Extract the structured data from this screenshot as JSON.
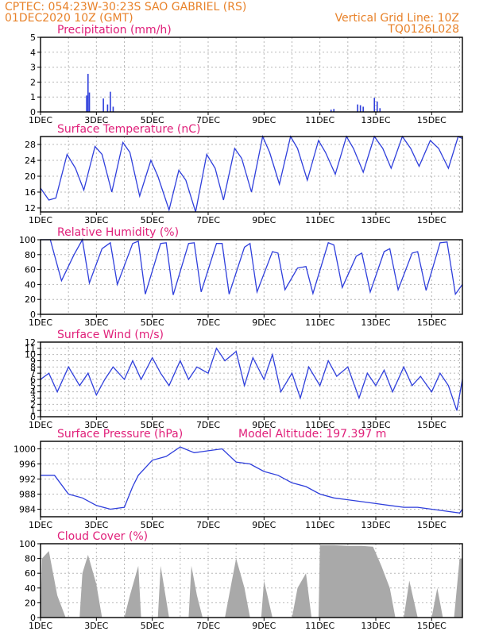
{
  "header": {
    "line1_left": "CPTEC:   054:23W-30:23S   SAO GABRIEL (RS)",
    "line2_left": "01DEC2020 10Z (GMT)",
    "line1_right": "Vertical Grid Line: 10Z",
    "line2_right": "TQ0126L028"
  },
  "x_axis": {
    "tick_labels": [
      "1DEC",
      "3DEC",
      "5DEC",
      "7DEC",
      "9DEC",
      "11DEC",
      "13DEC",
      "15DEC"
    ],
    "year_fragment": "2020"
  },
  "colors": {
    "series": "#2f3fdc",
    "cloud": "#a9a9a9",
    "title": "#e0207a",
    "header": "#e8822a"
  },
  "chart_data": [
    {
      "type": "bar",
      "title": "Precipitation (mm/h)",
      "unit": "mm/h",
      "ylim": [
        0,
        5
      ],
      "yticks": [
        0,
        1,
        2,
        3,
        4,
        5
      ],
      "x_unit": "days since 01DEC2020 10Z",
      "points": [
        [
          1.65,
          1.1
        ],
        [
          1.7,
          2.55
        ],
        [
          1.75,
          1.3
        ],
        [
          2.25,
          0.9
        ],
        [
          2.4,
          0.5
        ],
        [
          2.5,
          1.35
        ],
        [
          2.6,
          0.35
        ],
        [
          10.4,
          0.15
        ],
        [
          10.5,
          0.2
        ],
        [
          11.35,
          0.5
        ],
        [
          11.45,
          0.45
        ],
        [
          11.55,
          0.35
        ],
        [
          11.95,
          0.95
        ],
        [
          12.05,
          0.7
        ],
        [
          12.15,
          0.25
        ]
      ]
    },
    {
      "type": "line",
      "title": "Surface Temperature (nC)",
      "unit": "nC",
      "ylim": [
        11,
        30
      ],
      "yticks": [
        12,
        16,
        20,
        24,
        28
      ],
      "points": [
        [
          0,
          17
        ],
        [
          0.3,
          14
        ],
        [
          0.55,
          14.5
        ],
        [
          0.95,
          25.5
        ],
        [
          1.25,
          22
        ],
        [
          1.55,
          16.5
        ],
        [
          1.95,
          27.5
        ],
        [
          2.2,
          25.5
        ],
        [
          2.55,
          16
        ],
        [
          2.95,
          28.5
        ],
        [
          3.2,
          26
        ],
        [
          3.55,
          15
        ],
        [
          3.95,
          24
        ],
        [
          4.2,
          20
        ],
        [
          4.6,
          11.5
        ],
        [
          4.95,
          21.5
        ],
        [
          5.2,
          19
        ],
        [
          5.55,
          11
        ],
        [
          5.95,
          25.5
        ],
        [
          6.25,
          22
        ],
        [
          6.55,
          14
        ],
        [
          6.95,
          27
        ],
        [
          7.2,
          24.5
        ],
        [
          7.55,
          16
        ],
        [
          7.95,
          30
        ],
        [
          8.2,
          26
        ],
        [
          8.55,
          18
        ],
        [
          8.95,
          30
        ],
        [
          9.2,
          27
        ],
        [
          9.55,
          19
        ],
        [
          9.95,
          29
        ],
        [
          10.2,
          26
        ],
        [
          10.55,
          20.5
        ],
        [
          10.95,
          30
        ],
        [
          11.2,
          27
        ],
        [
          11.55,
          21
        ],
        [
          11.95,
          30
        ],
        [
          12.25,
          27
        ],
        [
          12.55,
          22
        ],
        [
          12.95,
          30
        ],
        [
          13.25,
          27
        ],
        [
          13.55,
          22.5
        ],
        [
          13.95,
          29
        ],
        [
          14.25,
          27
        ],
        [
          14.6,
          22
        ],
        [
          14.95,
          30
        ],
        [
          15.1,
          29.5
        ]
      ]
    },
    {
      "type": "line",
      "title": "Relative Humidity (%)",
      "unit": "%",
      "ylim": [
        0,
        100
      ],
      "yticks": [
        0,
        20,
        40,
        60,
        80,
        100
      ],
      "points": [
        [
          0,
          100
        ],
        [
          0.35,
          100
        ],
        [
          0.75,
          45
        ],
        [
          1.2,
          80
        ],
        [
          1.5,
          100
        ],
        [
          1.75,
          42
        ],
        [
          2.2,
          88
        ],
        [
          2.5,
          96
        ],
        [
          2.75,
          40
        ],
        [
          3.3,
          95
        ],
        [
          3.5,
          98
        ],
        [
          3.75,
          27
        ],
        [
          4.3,
          95
        ],
        [
          4.5,
          96
        ],
        [
          4.75,
          26
        ],
        [
          5.3,
          95
        ],
        [
          5.5,
          96
        ],
        [
          5.75,
          30
        ],
        [
          6.3,
          95
        ],
        [
          6.5,
          95
        ],
        [
          6.75,
          27
        ],
        [
          7.3,
          90
        ],
        [
          7.5,
          95
        ],
        [
          7.75,
          30
        ],
        [
          8.3,
          84
        ],
        [
          8.5,
          82
        ],
        [
          8.75,
          33
        ],
        [
          9.2,
          62
        ],
        [
          9.5,
          64
        ],
        [
          9.75,
          28
        ],
        [
          10.3,
          96
        ],
        [
          10.5,
          93
        ],
        [
          10.8,
          36
        ],
        [
          11.3,
          78
        ],
        [
          11.5,
          82
        ],
        [
          11.8,
          30
        ],
        [
          12.3,
          84
        ],
        [
          12.5,
          88
        ],
        [
          12.8,
          33
        ],
        [
          13.3,
          82
        ],
        [
          13.5,
          84
        ],
        [
          13.8,
          32
        ],
        [
          14.3,
          96
        ],
        [
          14.55,
          97
        ],
        [
          14.85,
          27
        ],
        [
          15.1,
          40
        ]
      ]
    },
    {
      "type": "line",
      "title": "Surface Wind (m/s)",
      "unit": "m/s",
      "ylim": [
        0,
        12
      ],
      "yticks": [
        0,
        1,
        2,
        3,
        4,
        5,
        6,
        7,
        8,
        9,
        10,
        11,
        12
      ],
      "points": [
        [
          0,
          6
        ],
        [
          0.3,
          7
        ],
        [
          0.6,
          4
        ],
        [
          1,
          8
        ],
        [
          1.4,
          5
        ],
        [
          1.7,
          7
        ],
        [
          2.0,
          3.5
        ],
        [
          2.3,
          6
        ],
        [
          2.6,
          8
        ],
        [
          3.0,
          6
        ],
        [
          3.3,
          9
        ],
        [
          3.6,
          6
        ],
        [
          4.0,
          9.5
        ],
        [
          4.3,
          7
        ],
        [
          4.6,
          5
        ],
        [
          5.0,
          9
        ],
        [
          5.3,
          6
        ],
        [
          5.6,
          8
        ],
        [
          6.0,
          7
        ],
        [
          6.3,
          11
        ],
        [
          6.6,
          9
        ],
        [
          7.0,
          10.5
        ],
        [
          7.3,
          5
        ],
        [
          7.6,
          9.5
        ],
        [
          8.0,
          6
        ],
        [
          8.3,
          10
        ],
        [
          8.6,
          4
        ],
        [
          9.0,
          7
        ],
        [
          9.3,
          3
        ],
        [
          9.6,
          8
        ],
        [
          10.0,
          5
        ],
        [
          10.3,
          9
        ],
        [
          10.6,
          6.5
        ],
        [
          11.0,
          8
        ],
        [
          11.4,
          3
        ],
        [
          11.7,
          7
        ],
        [
          12.0,
          5
        ],
        [
          12.3,
          7.5
        ],
        [
          12.6,
          4
        ],
        [
          13.0,
          8
        ],
        [
          13.3,
          5
        ],
        [
          13.6,
          6.5
        ],
        [
          14.0,
          4
        ],
        [
          14.3,
          7
        ],
        [
          14.6,
          5
        ],
        [
          14.9,
          1
        ],
        [
          15.1,
          6
        ]
      ]
    },
    {
      "type": "line",
      "title": "Surface Pressure (hPa)",
      "annotation": "Model Altitude: 197.397  m",
      "unit": "hPa",
      "ylim": [
        982,
        1002
      ],
      "yticks": [
        984,
        988,
        992,
        996,
        1000
      ],
      "points": [
        [
          0,
          993
        ],
        [
          0.5,
          993
        ],
        [
          1,
          988
        ],
        [
          1.5,
          987
        ],
        [
          2,
          985
        ],
        [
          2.5,
          984
        ],
        [
          3,
          984.5
        ],
        [
          3.3,
          990
        ],
        [
          3.5,
          993
        ],
        [
          4.0,
          997
        ],
        [
          4.5,
          998
        ],
        [
          5.0,
          1000.5
        ],
        [
          5.5,
          999
        ],
        [
          6.0,
          999.5
        ],
        [
          6.5,
          1000
        ],
        [
          7.0,
          996.5
        ],
        [
          7.5,
          996
        ],
        [
          8.0,
          994
        ],
        [
          8.5,
          993
        ],
        [
          9.0,
          991
        ],
        [
          9.5,
          990
        ],
        [
          10.0,
          988
        ],
        [
          10.5,
          987
        ],
        [
          11.0,
          986.5
        ],
        [
          11.5,
          986
        ],
        [
          12.0,
          985.5
        ],
        [
          12.5,
          985
        ],
        [
          13.0,
          984.5
        ],
        [
          13.5,
          984.5
        ],
        [
          14.0,
          984
        ],
        [
          14.5,
          983.5
        ],
        [
          15.0,
          983
        ],
        [
          15.1,
          984
        ]
      ]
    },
    {
      "type": "area",
      "title": "Cloud Cover (%)",
      "unit": "%",
      "ylim": [
        0,
        100
      ],
      "yticks": [
        0,
        20,
        40,
        60,
        80,
        100
      ],
      "points": [
        [
          0,
          0
        ],
        [
          0.05,
          80
        ],
        [
          0.3,
          90
        ],
        [
          0.6,
          30
        ],
        [
          0.9,
          0
        ],
        [
          1.4,
          0
        ],
        [
          1.5,
          60
        ],
        [
          1.7,
          85
        ],
        [
          2.0,
          45
        ],
        [
          2.2,
          0
        ],
        [
          3.0,
          0
        ],
        [
          3.2,
          30
        ],
        [
          3.5,
          70
        ],
        [
          3.6,
          0
        ],
        [
          4.2,
          0
        ],
        [
          4.3,
          70
        ],
        [
          4.6,
          0
        ],
        [
          5.3,
          0
        ],
        [
          5.4,
          70
        ],
        [
          5.6,
          30
        ],
        [
          5.8,
          0
        ],
        [
          6.6,
          0
        ],
        [
          6.8,
          40
        ],
        [
          7.0,
          80
        ],
        [
          7.3,
          40
        ],
        [
          7.5,
          0
        ],
        [
          7.9,
          0
        ],
        [
          8.0,
          50
        ],
        [
          8.3,
          0
        ],
        [
          9.0,
          0
        ],
        [
          9.2,
          40
        ],
        [
          9.5,
          60
        ],
        [
          9.7,
          0
        ],
        [
          9.95,
          0
        ],
        [
          10.0,
          98
        ],
        [
          10.5,
          98
        ],
        [
          11.0,
          97
        ],
        [
          11.5,
          97
        ],
        [
          11.9,
          96
        ],
        [
          12.2,
          70
        ],
        [
          12.5,
          40
        ],
        [
          12.7,
          0
        ],
        [
          13.0,
          0
        ],
        [
          13.2,
          50
        ],
        [
          13.5,
          0
        ],
        [
          14.0,
          0
        ],
        [
          14.2,
          40
        ],
        [
          14.4,
          0
        ],
        [
          14.8,
          0
        ],
        [
          15.0,
          80
        ],
        [
          15.1,
          80
        ]
      ]
    }
  ]
}
